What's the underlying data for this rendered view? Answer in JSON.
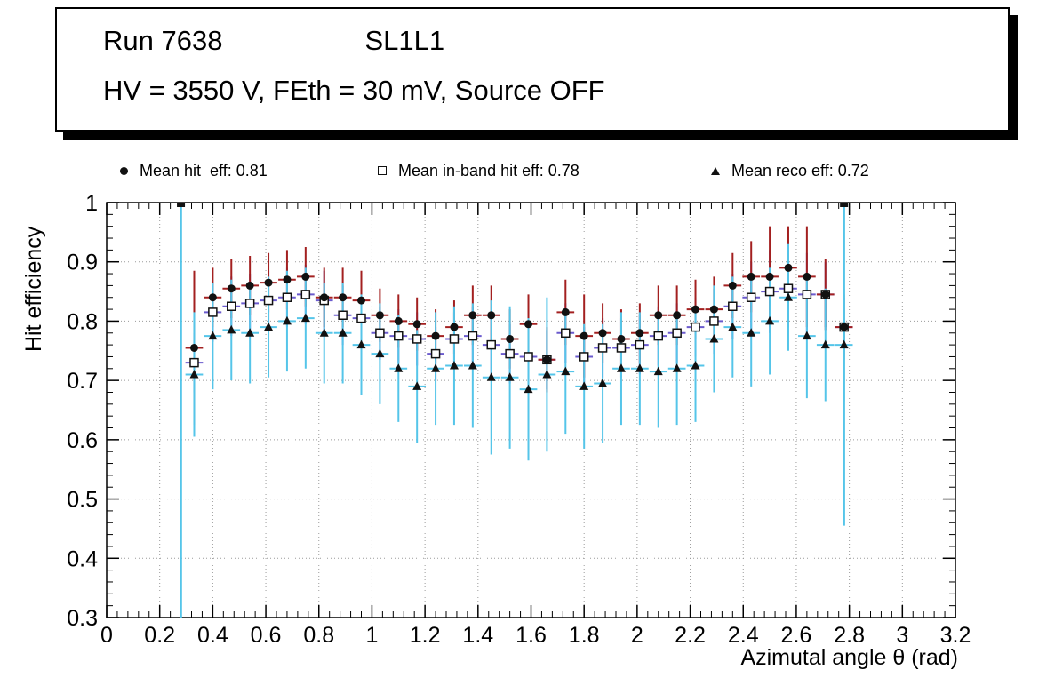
{
  "title_box": {
    "run": "Run 7638",
    "layer": "SL1L1",
    "conditions": "HV = 3550 V, FEth = 30 mV, Source OFF"
  },
  "legend": {
    "items": [
      {
        "marker": "filled-circle",
        "label": "Mean hit  eff: 0.81"
      },
      {
        "marker": "open-square",
        "label": "Mean in-band hit eff: 0.78"
      },
      {
        "marker": "filled-triangle",
        "label": "Mean reco eff: 0.72"
      }
    ]
  },
  "axes": {
    "x_label": "Azimutal angle θ (rad)",
    "y_label": "Hit efficiency"
  },
  "chart_data": {
    "type": "scatter",
    "title": "Run 7638  SL1L1",
    "subtitle": "HV = 3550 V, FEth = 30 mV, Source OFF",
    "xlabel": "Azimutal angle θ (rad)",
    "ylabel": "Hit efficiency",
    "xlim": [
      0,
      3.2
    ],
    "ylim": [
      0.3,
      1.0
    ],
    "grid": true,
    "legend_position": "top",
    "x_ticks": {
      "values": [
        0,
        0.2,
        0.4,
        0.6,
        0.8,
        1,
        1.2,
        1.4,
        1.6,
        1.8,
        2,
        2.2,
        2.4,
        2.6,
        2.8,
        3,
        3.2
      ],
      "labels": [
        "0",
        "0.2",
        "0.4",
        "0.6",
        "0.8",
        "1",
        "1.2",
        "1.4",
        "1.6",
        "1.8",
        "2",
        "2.2",
        "2.4",
        "2.6",
        "2.8",
        "3",
        "3.2"
      ]
    },
    "y_ticks": {
      "values": [
        0.3,
        0.4,
        0.5,
        0.6,
        0.7,
        0.8,
        0.9,
        1
      ],
      "labels": [
        "0.3",
        "0.4",
        "0.5",
        "0.6",
        "0.7",
        "0.8",
        "0.9",
        "1"
      ]
    },
    "x": [
      0.33,
      0.4,
      0.47,
      0.54,
      0.61,
      0.68,
      0.75,
      0.82,
      0.89,
      0.96,
      1.03,
      1.1,
      1.17,
      1.24,
      1.31,
      1.38,
      1.45,
      1.52,
      1.59,
      1.66,
      1.73,
      1.8,
      1.87,
      1.94,
      2.01,
      2.08,
      2.15,
      2.22,
      2.29,
      2.36,
      2.43,
      2.5,
      2.57,
      2.64,
      2.71,
      2.78
    ],
    "x_half_width": 0.033,
    "series": [
      {
        "name": "Mean hit eff",
        "mean": 0.81,
        "marker": "filled-circle",
        "marker_color": "#111111",
        "error_color": "#a32020",
        "y": [
          0.755,
          0.84,
          0.855,
          0.86,
          0.865,
          0.87,
          0.875,
          0.84,
          0.84,
          0.835,
          0.81,
          0.8,
          0.795,
          0.775,
          0.79,
          0.81,
          0.81,
          0.77,
          0.795,
          0.735,
          0.815,
          0.775,
          0.78,
          0.77,
          0.78,
          0.81,
          0.81,
          0.82,
          0.82,
          0.86,
          0.875,
          0.875,
          0.89,
          0.875,
          0.845,
          0.79
        ],
        "ey": [
          0.13,
          0.05,
          0.05,
          0.05,
          0.05,
          0.05,
          0.05,
          0.05,
          0.05,
          0.05,
          0.045,
          0.045,
          0.045,
          0.045,
          0.045,
          0.05,
          0.05,
          0.05,
          0.05,
          0.055,
          0.055,
          0.07,
          0.05,
          0.05,
          0.05,
          0.05,
          0.05,
          0.05,
          0.055,
          0.055,
          0.06,
          0.085,
          0.07,
          0.085,
          0.06,
          0.055
        ]
      },
      {
        "name": "Mean in-band hit eff",
        "mean": 0.78,
        "marker": "open-square",
        "marker_color": "#111111",
        "error_color": "#6a5acd",
        "y": [
          0.73,
          0.815,
          0.825,
          0.83,
          0.835,
          0.84,
          0.845,
          0.835,
          0.81,
          0.805,
          0.78,
          0.775,
          0.77,
          0.745,
          0.77,
          0.775,
          0.76,
          0.745,
          0.74,
          0.735,
          0.78,
          0.74,
          0.755,
          0.755,
          0.76,
          0.775,
          0.78,
          0.79,
          0.8,
          0.825,
          0.84,
          0.85,
          0.855,
          0.845,
          0.845,
          0.79
        ],
        "ey": [
          0.05,
          0.05,
          0.05,
          0.05,
          0.05,
          0.05,
          0.05,
          0.05,
          0.05,
          0.05,
          0.045,
          0.045,
          0.045,
          0.045,
          0.045,
          0.05,
          0.05,
          0.05,
          0.05,
          0.05,
          0.05,
          0.05,
          0.05,
          0.05,
          0.05,
          0.05,
          0.05,
          0.05,
          0.055,
          0.055,
          0.06,
          0.07,
          0.065,
          0.07,
          0.055,
          0.05
        ]
      },
      {
        "name": "Mean reco eff",
        "mean": 0.72,
        "marker": "filled-triangle",
        "marker_color": "#111111",
        "error_color": "#55c5e9",
        "y": [
          0.71,
          0.775,
          0.785,
          0.78,
          0.79,
          0.8,
          0.805,
          0.78,
          0.78,
          0.76,
          0.745,
          0.72,
          0.69,
          0.72,
          0.725,
          0.725,
          0.705,
          0.705,
          0.685,
          0.71,
          0.715,
          0.69,
          0.695,
          0.72,
          0.72,
          0.715,
          0.72,
          0.725,
          0.77,
          0.79,
          0.78,
          0.8,
          0.84,
          0.775,
          0.76,
          0.76
        ],
        "ey": [
          0.105,
          0.09,
          0.085,
          0.085,
          0.085,
          0.085,
          0.085,
          0.085,
          0.085,
          0.085,
          0.085,
          0.09,
          0.095,
          0.095,
          0.1,
          0.105,
          0.13,
          0.12,
          0.12,
          0.13,
          0.105,
          0.105,
          0.1,
          0.095,
          0.095,
          0.095,
          0.095,
          0.095,
          0.09,
          0.085,
          0.09,
          0.09,
          0.09,
          0.105,
          0.095,
          0.095
        ]
      }
    ],
    "outlier_spikes": [
      {
        "x": 0.28,
        "y_top": 1.0,
        "y_low": 0.3,
        "color": "#55c5e9"
      },
      {
        "x": 2.78,
        "y_top": 1.0,
        "y_low": 0.455,
        "color": "#55c5e9"
      }
    ]
  }
}
